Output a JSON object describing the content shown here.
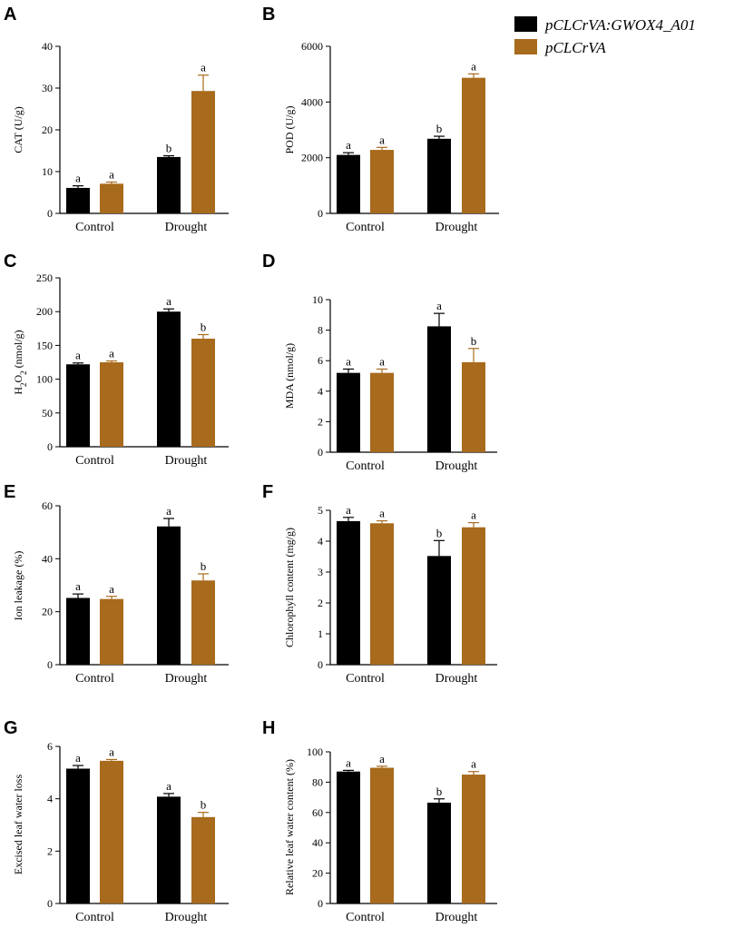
{
  "colors": {
    "series1": "#000000",
    "series2": "#a86a1c",
    "axis": "#000000"
  },
  "legend": [
    {
      "label": "pCLCrVA:GWOX4_A01",
      "color": "#000000"
    },
    {
      "label": "pCLCrVA",
      "color": "#a86a1c"
    }
  ],
  "chart_data": [
    {
      "letter": "A",
      "type": "bar",
      "ylabel": "CAT (U/g)",
      "ylim": [
        0,
        40
      ],
      "yticks": [
        "0",
        "10",
        "20",
        "30",
        "40"
      ],
      "categories": [
        "Control",
        "Drought"
      ],
      "series": [
        {
          "name": "pCLCrVA:GWOX4_A01",
          "values": [
            6.1,
            13.5
          ],
          "errors": [
            0.5,
            0.3
          ],
          "sig": [
            "a",
            "b"
          ]
        },
        {
          "name": "pCLCrVA",
          "values": [
            7.1,
            29.3
          ],
          "errors": [
            0.4,
            3.8
          ],
          "sig": [
            "a",
            "a"
          ]
        }
      ]
    },
    {
      "letter": "B",
      "type": "bar",
      "ylabel": "POD (U/g)",
      "ylim": [
        0,
        6000
      ],
      "yticks": [
        "0",
        "2000",
        "4000",
        "6000"
      ],
      "categories": [
        "Control",
        "Drought"
      ],
      "series": [
        {
          "name": "pCLCrVA:GWOX4_A01",
          "values": [
            2100,
            2680
          ],
          "errors": [
            80,
            90
          ],
          "sig": [
            "a",
            "b"
          ]
        },
        {
          "name": "pCLCrVA",
          "values": [
            2280,
            4870
          ],
          "errors": [
            90,
            140
          ],
          "sig": [
            "a",
            "a"
          ]
        }
      ]
    },
    {
      "letter": "C",
      "type": "bar",
      "ylabel": "H2O2 (nmol/g)",
      "ylim": [
        0,
        250
      ],
      "yticks": [
        "0",
        "50",
        "100",
        "150",
        "200",
        "250"
      ],
      "categories": [
        "Control",
        "Drought"
      ],
      "series": [
        {
          "name": "pCLCrVA:GWOX4_A01",
          "values": [
            122,
            200
          ],
          "errors": [
            2,
            4
          ],
          "sig": [
            "a",
            "a"
          ]
        },
        {
          "name": "pCLCrVA",
          "values": [
            125,
            160
          ],
          "errors": [
            2,
            6
          ],
          "sig": [
            "a",
            "b"
          ]
        }
      ]
    },
    {
      "letter": "D",
      "type": "bar",
      "ylabel": "MDA (nmol/g)",
      "ylim": [
        0,
        10
      ],
      "yticks": [
        "0",
        "2",
        "4",
        "6",
        "8",
        "10"
      ],
      "categories": [
        "Control",
        "Drought"
      ],
      "series": [
        {
          "name": "pCLCrVA:GWOX4_A01",
          "values": [
            5.2,
            8.25
          ],
          "errors": [
            0.25,
            0.85
          ],
          "sig": [
            "a",
            "a"
          ]
        },
        {
          "name": "pCLCrVA",
          "values": [
            5.2,
            5.9
          ],
          "errors": [
            0.25,
            0.9
          ],
          "sig": [
            "a",
            "b"
          ]
        }
      ]
    },
    {
      "letter": "E",
      "type": "bar",
      "ylabel": "Ion leakage (%)",
      "ylim": [
        0,
        60
      ],
      "yticks": [
        "0",
        "20",
        "40",
        "60"
      ],
      "categories": [
        "Control",
        "Drought"
      ],
      "series": [
        {
          "name": "pCLCrVA:GWOX4_A01",
          "values": [
            25.2,
            52.2
          ],
          "errors": [
            1.5,
            3.0
          ],
          "sig": [
            "a",
            "a"
          ]
        },
        {
          "name": "pCLCrVA",
          "values": [
            24.8,
            31.8
          ],
          "errors": [
            1.0,
            2.5
          ],
          "sig": [
            "a",
            "b"
          ]
        }
      ]
    },
    {
      "letter": "F",
      "type": "bar",
      "ylabel": "Chlorophyll content (mg/g)",
      "ylim": [
        0,
        5
      ],
      "yticks": [
        "0",
        "1",
        "2",
        "3",
        "4",
        "5"
      ],
      "categories": [
        "Control",
        "Drought"
      ],
      "series": [
        {
          "name": "pCLCrVA:GWOX4_A01",
          "values": [
            4.65,
            3.52
          ],
          "errors": [
            0.12,
            0.5
          ],
          "sig": [
            "a",
            "b"
          ]
        },
        {
          "name": "pCLCrVA",
          "values": [
            4.58,
            4.45
          ],
          "errors": [
            0.08,
            0.15
          ],
          "sig": [
            "a",
            "a"
          ]
        }
      ]
    },
    {
      "letter": "G",
      "type": "bar",
      "ylabel": "Excised leaf water loss",
      "ylim": [
        0,
        6
      ],
      "yticks": [
        "0",
        "2",
        "4",
        "6"
      ],
      "categories": [
        "Control",
        "Drought"
      ],
      "series": [
        {
          "name": "pCLCrVA:GWOX4_A01",
          "values": [
            5.15,
            4.08
          ],
          "errors": [
            0.12,
            0.12
          ],
          "sig": [
            "a",
            "a"
          ]
        },
        {
          "name": "pCLCrVA",
          "values": [
            5.45,
            3.3
          ],
          "errors": [
            0.05,
            0.18
          ],
          "sig": [
            "a",
            "b"
          ]
        }
      ]
    },
    {
      "letter": "H",
      "type": "bar",
      "ylabel": "Relative leaf water content (%)",
      "ylim": [
        0,
        100
      ],
      "yticks": [
        "0",
        "20",
        "40",
        "60",
        "80",
        "100"
      ],
      "categories": [
        "Control",
        "Drought"
      ],
      "series": [
        {
          "name": "pCLCrVA:GWOX4_A01",
          "values": [
            87,
            66.5
          ],
          "errors": [
            0.8,
            2.5
          ],
          "sig": [
            "a",
            "b"
          ]
        },
        {
          "name": "pCLCrVA",
          "values": [
            89.5,
            85
          ],
          "errors": [
            1.0,
            2.0
          ],
          "sig": [
            "a",
            "a"
          ]
        }
      ]
    }
  ]
}
